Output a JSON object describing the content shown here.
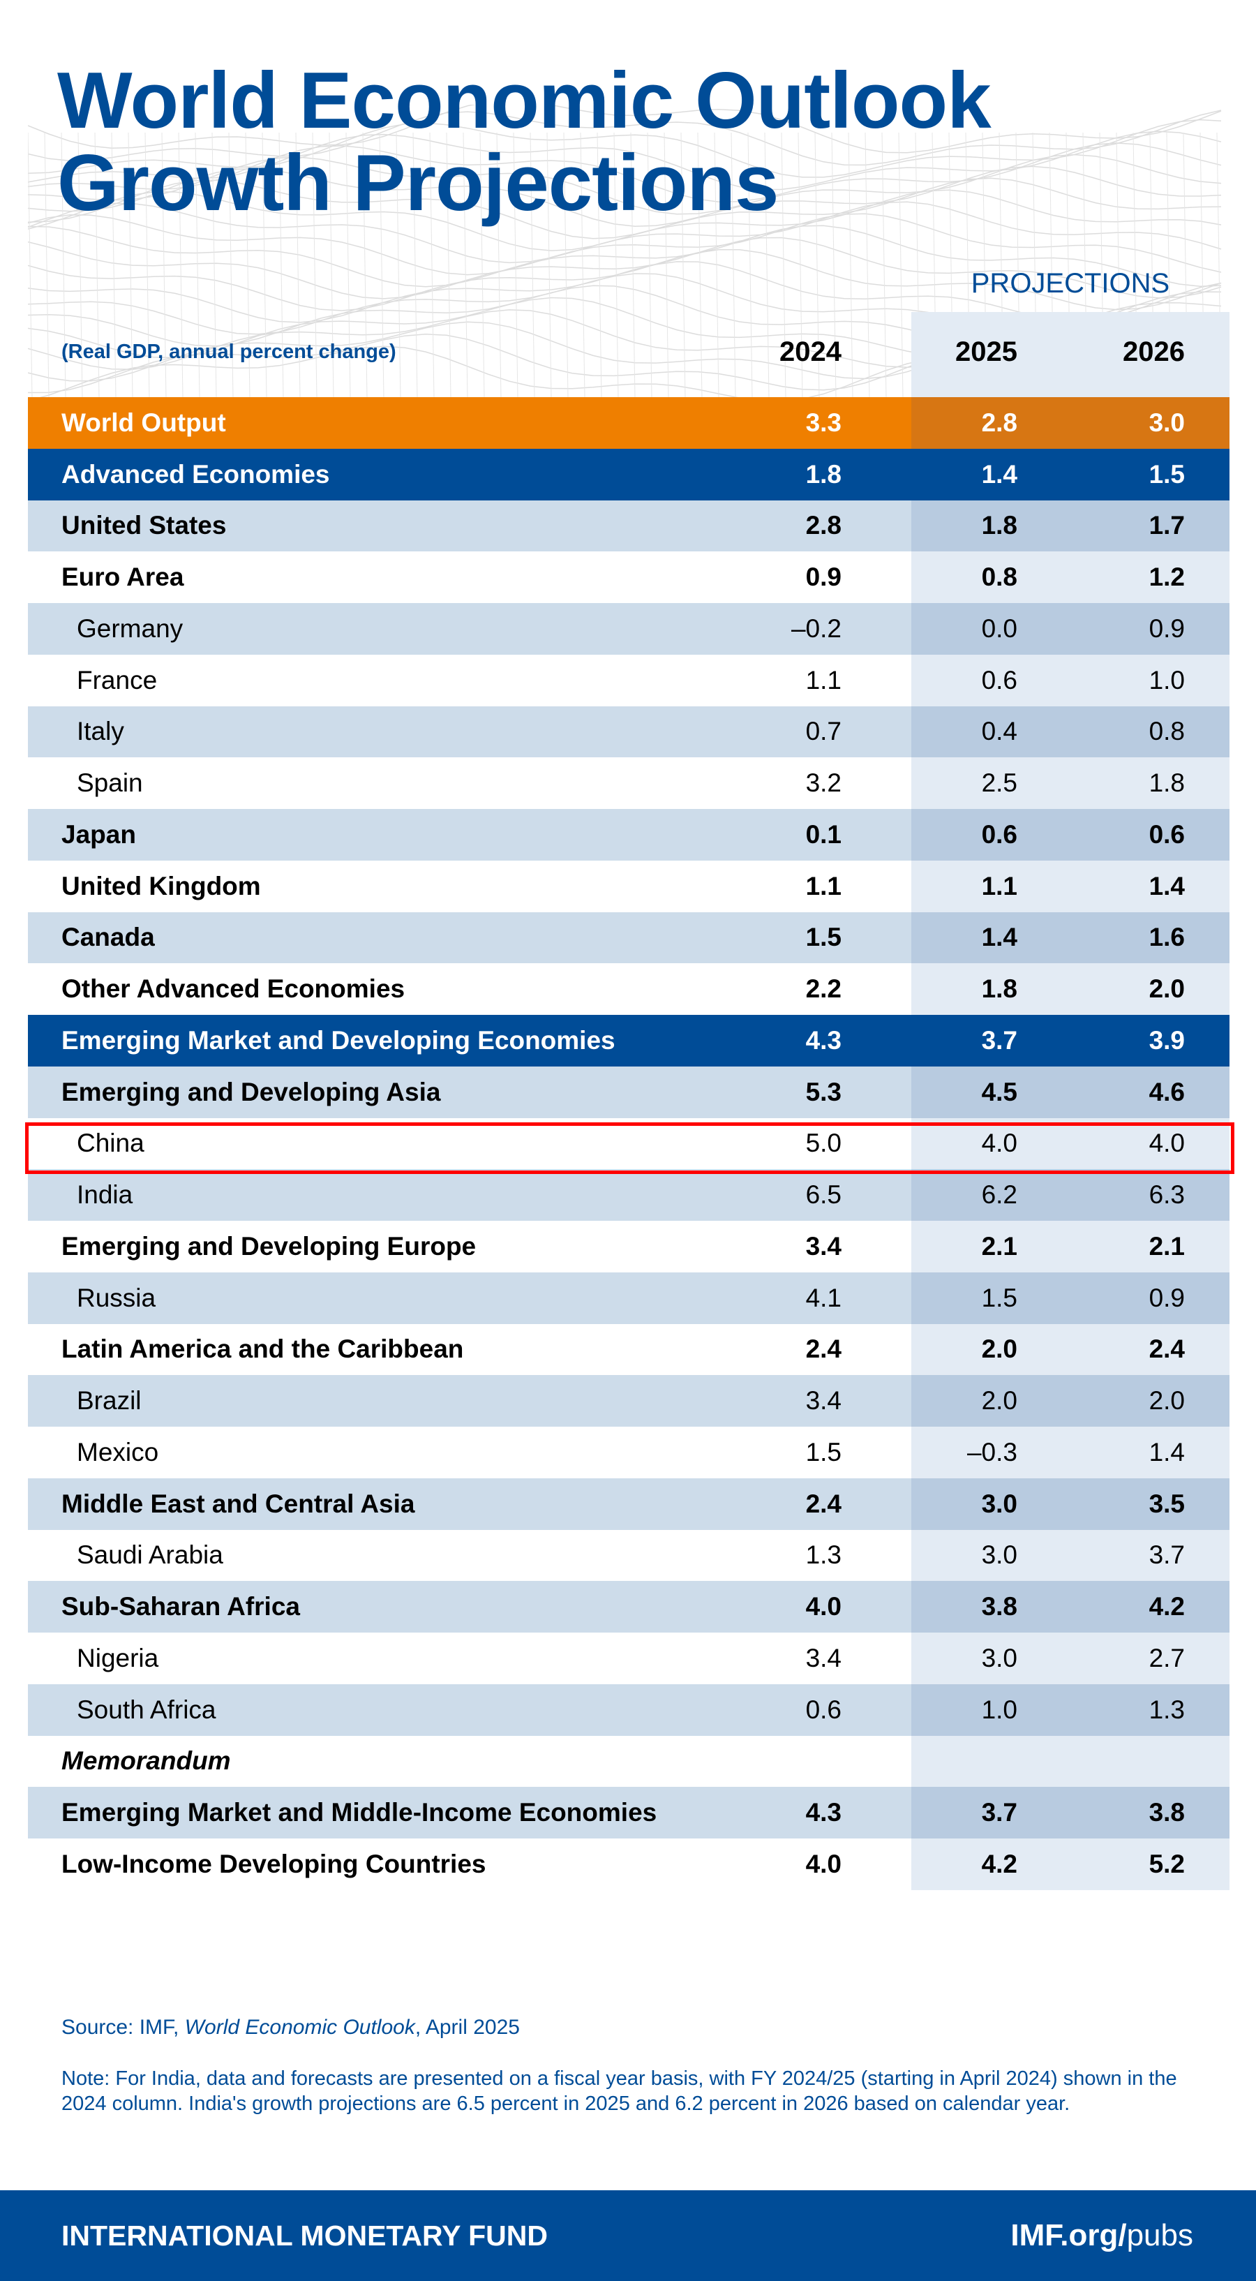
{
  "title": {
    "line1": "World Economic Outlook",
    "line2": "Growth Projections"
  },
  "header": {
    "subtitle": "(Real GDP, annual percent change)",
    "projections_label": "PROJECTIONS",
    "years": [
      "2024",
      "2025",
      "2026"
    ]
  },
  "colors": {
    "brand_blue": "#004c97",
    "orange": "#ef7f00",
    "highlight_border": "#ff0000",
    "row_light": "#cddcea"
  },
  "rows": [
    {
      "label": "World Output",
      "values": [
        "3.3",
        "2.8",
        "3.0"
      ],
      "style": "orange"
    },
    {
      "label": "Advanced Economies",
      "values": [
        "1.8",
        "1.4",
        "1.5"
      ],
      "style": "blue"
    },
    {
      "label": "United States",
      "values": [
        "2.8",
        "1.8",
        "1.7"
      ],
      "style": "group"
    },
    {
      "label": "Euro Area",
      "values": [
        "0.9",
        "0.8",
        "1.2"
      ],
      "style": "group"
    },
    {
      "label": "Germany",
      "values": [
        "–0.2",
        "0.0",
        "0.9"
      ],
      "style": "sub"
    },
    {
      "label": "France",
      "values": [
        "1.1",
        "0.6",
        "1.0"
      ],
      "style": "sub"
    },
    {
      "label": "Italy",
      "values": [
        "0.7",
        "0.4",
        "0.8"
      ],
      "style": "sub"
    },
    {
      "label": "Spain",
      "values": [
        "3.2",
        "2.5",
        "1.8"
      ],
      "style": "sub"
    },
    {
      "label": "Japan",
      "values": [
        "0.1",
        "0.6",
        "0.6"
      ],
      "style": "group"
    },
    {
      "label": "United Kingdom",
      "values": [
        "1.1",
        "1.1",
        "1.4"
      ],
      "style": "group"
    },
    {
      "label": "Canada",
      "values": [
        "1.5",
        "1.4",
        "1.6"
      ],
      "style": "group"
    },
    {
      "label": "Other Advanced Economies",
      "values": [
        "2.2",
        "1.8",
        "2.0"
      ],
      "style": "group"
    },
    {
      "label": "Emerging Market and Developing Economies",
      "values": [
        "4.3",
        "3.7",
        "3.9"
      ],
      "style": "blue"
    },
    {
      "label": "Emerging and Developing Asia",
      "values": [
        "5.3",
        "4.5",
        "4.6"
      ],
      "style": "group"
    },
    {
      "label": "China",
      "values": [
        "5.0",
        "4.0",
        "4.0"
      ],
      "style": "sub",
      "highlighted": true
    },
    {
      "label": "India",
      "values": [
        "6.5",
        "6.2",
        "6.3"
      ],
      "style": "sub"
    },
    {
      "label": "Emerging and Developing Europe",
      "values": [
        "3.4",
        "2.1",
        "2.1"
      ],
      "style": "group"
    },
    {
      "label": "Russia",
      "values": [
        "4.1",
        "1.5",
        "0.9"
      ],
      "style": "sub"
    },
    {
      "label": "Latin America and the Caribbean",
      "values": [
        "2.4",
        "2.0",
        "2.4"
      ],
      "style": "group"
    },
    {
      "label": "Brazil",
      "values": [
        "3.4",
        "2.0",
        "2.0"
      ],
      "style": "sub"
    },
    {
      "label": "Mexico",
      "values": [
        "1.5",
        "–0.3",
        "1.4"
      ],
      "style": "sub"
    },
    {
      "label": "Middle East and Central Asia",
      "values": [
        "2.4",
        "3.0",
        "3.5"
      ],
      "style": "group"
    },
    {
      "label": "Saudi Arabia",
      "values": [
        "1.3",
        "3.0",
        "3.7"
      ],
      "style": "sub"
    },
    {
      "label": "Sub-Saharan Africa",
      "values": [
        "4.0",
        "3.8",
        "4.2"
      ],
      "style": "group"
    },
    {
      "label": "Nigeria",
      "values": [
        "3.4",
        "3.0",
        "2.7"
      ],
      "style": "sub"
    },
    {
      "label": "South Africa",
      "values": [
        "0.6",
        "1.0",
        "1.3"
      ],
      "style": "sub"
    },
    {
      "label": "Memorandum",
      "values": [
        "",
        "",
        ""
      ],
      "style": "memo"
    },
    {
      "label": "Emerging Market and Middle-Income Economies",
      "values": [
        "4.3",
        "3.7",
        "3.8"
      ],
      "style": "group"
    },
    {
      "label": "Low-Income Developing Countries",
      "values": [
        "4.0",
        "4.2",
        "5.2"
      ],
      "style": "group"
    }
  ],
  "source": {
    "prefix": "Source: IMF, ",
    "title": "World Economic Outlook",
    "suffix": ", April 2025"
  },
  "note": "Note: For India, data and forecasts are presented on a fiscal year basis, with FY 2024/25 (starting in April 2024) shown in the 2024 column. India's growth projections are 6.5 percent in 2025 and 6.2 percent in 2026 based on calendar year.",
  "footer": {
    "org": "INTERNATIONAL MONETARY FUND",
    "link_bold": "IMF.org/",
    "link_rest": "pubs"
  }
}
